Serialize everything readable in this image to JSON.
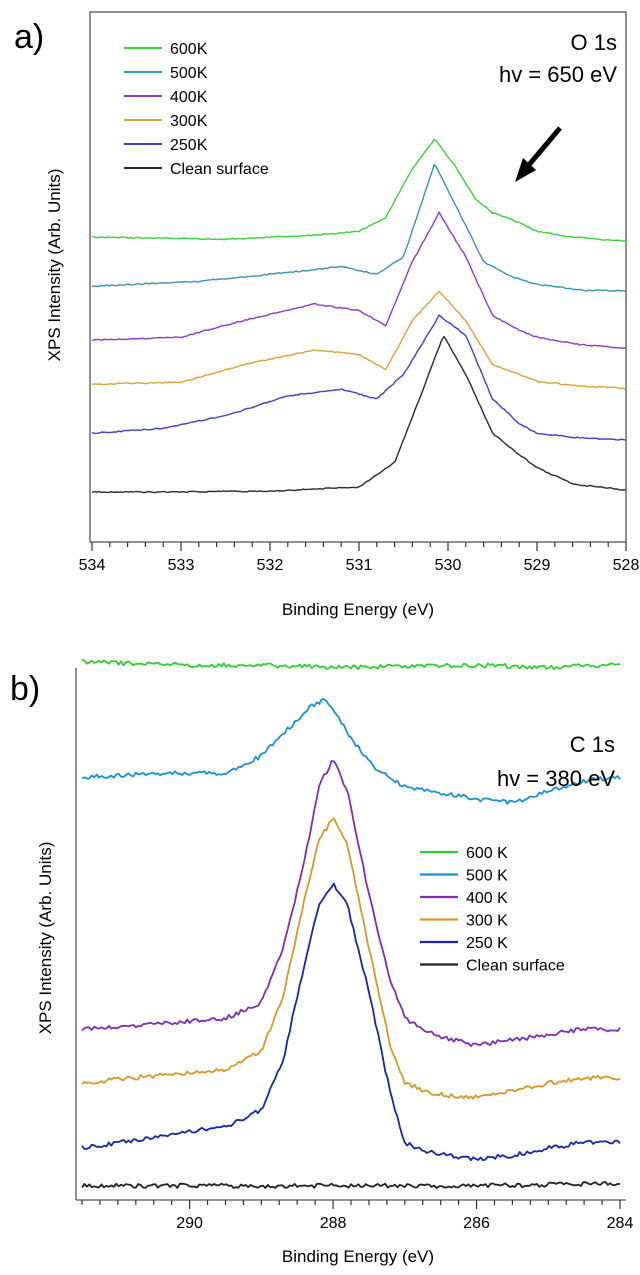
{
  "chart_data": [
    {
      "type": "line",
      "panel_label": "a)",
      "annotation_line1": "O 1s",
      "annotation_line2": "hv = 650 eV",
      "xlabel": "Binding Energy (eV)",
      "ylabel": "XPS Intensity (Arb. Units)",
      "xlim": [
        534,
        528
      ],
      "x_reversed": true,
      "xticks": [
        534,
        533,
        532,
        531,
        530,
        529,
        528
      ],
      "y_ticks_shown": false,
      "arrow": {
        "x": 529.3,
        "points_to": "600K shoulder"
      },
      "legend": {
        "placement": "top-left",
        "entries": [
          "600K",
          "500K",
          "400K",
          "300K",
          "250K",
          "Clean surface"
        ]
      },
      "series": [
        {
          "name": "600K",
          "color": "#3bd13b",
          "x": [
            534,
            532.5,
            531.5,
            531,
            530.7,
            530.4,
            530.15,
            529.9,
            529.7,
            529.5,
            529.2,
            529,
            528.6,
            528
          ],
          "y": [
            2.6,
            2.58,
            2.62,
            2.66,
            2.8,
            3.3,
            3.6,
            3.3,
            3.0,
            2.85,
            2.75,
            2.66,
            2.6,
            2.56
          ]
        },
        {
          "name": "500K",
          "color": "#3a91b4",
          "x": [
            534,
            532.8,
            531.8,
            531.2,
            530.8,
            530.5,
            530.15,
            529.9,
            529.6,
            529.3,
            529,
            528.5,
            528
          ],
          "y": [
            2.1,
            2.15,
            2.24,
            2.3,
            2.22,
            2.4,
            3.35,
            2.9,
            2.35,
            2.2,
            2.12,
            2.06,
            2.05
          ]
        },
        {
          "name": "400K",
          "color": "#8c3dbd",
          "x": [
            534,
            533,
            532.3,
            531.5,
            531,
            530.7,
            530.4,
            530.1,
            529.8,
            529.5,
            529.2,
            529,
            528.5,
            528
          ],
          "y": [
            1.55,
            1.58,
            1.75,
            1.92,
            1.85,
            1.7,
            2.35,
            2.85,
            2.4,
            1.8,
            1.65,
            1.58,
            1.5,
            1.47
          ]
        },
        {
          "name": "300K",
          "color": "#daa13a",
          "x": [
            534,
            533,
            532.3,
            531.5,
            531,
            530.7,
            530.4,
            530.1,
            529.8,
            529.5,
            529.2,
            529,
            528.5,
            528
          ],
          "y": [
            1.1,
            1.12,
            1.3,
            1.45,
            1.4,
            1.25,
            1.75,
            2.05,
            1.75,
            1.3,
            1.2,
            1.13,
            1.08,
            1.06
          ]
        },
        {
          "name": "250K",
          "color": "#3f3fc8",
          "x": [
            534,
            533.2,
            532.5,
            531.8,
            531.2,
            530.8,
            530.5,
            530.1,
            529.8,
            529.5,
            529.2,
            529,
            528.5,
            528
          ],
          "y": [
            0.6,
            0.65,
            0.78,
            0.98,
            1.05,
            0.95,
            1.2,
            1.8,
            1.6,
            0.95,
            0.7,
            0.6,
            0.55,
            0.53
          ]
        },
        {
          "name": "Clean surface",
          "color": "#2a2a2a",
          "x": [
            534,
            533,
            532,
            531,
            530.6,
            530.3,
            530.05,
            529.8,
            529.5,
            529.3,
            529,
            528.6,
            528
          ],
          "y": [
            0.0,
            0.0,
            0.01,
            0.05,
            0.3,
            1.0,
            1.6,
            1.2,
            0.6,
            0.45,
            0.25,
            0.08,
            0.02
          ]
        }
      ]
    },
    {
      "type": "line",
      "panel_label": "b)",
      "annotation_line1": "C 1s",
      "annotation_line2": "hv = 380 eV",
      "xlabel": "Binding Energy (eV)",
      "ylabel": "XPS Intensity (Arb. Units)",
      "xlim": [
        291.5,
        284
      ],
      "x_reversed": true,
      "xticks": [
        290,
        288,
        286,
        284
      ],
      "y_ticks_shown": false,
      "legend": {
        "placement": "center-right",
        "entries": [
          "600 K",
          "500 K",
          "400 K",
          "300 K",
          "250 K",
          "Clean surface"
        ]
      },
      "series": [
        {
          "name": "600 K",
          "color": "#33cc33",
          "x": [
            291.5,
            290,
            289,
            288,
            287,
            286,
            285,
            284
          ],
          "y": [
            4.75,
            4.72,
            4.72,
            4.7,
            4.71,
            4.72,
            4.7,
            4.73
          ]
        },
        {
          "name": "500 K",
          "color": "#1b8fd4",
          "x": [
            291.5,
            290.5,
            289.5,
            289,
            288.6,
            288.3,
            288.1,
            287.7,
            287.4,
            287,
            286.6,
            286,
            285.5,
            285,
            284.5,
            284
          ],
          "y": [
            3.68,
            3.72,
            3.72,
            3.88,
            4.15,
            4.35,
            4.4,
            4.0,
            3.75,
            3.6,
            3.55,
            3.48,
            3.45,
            3.55,
            3.65,
            3.68
          ]
        },
        {
          "name": "400 K",
          "color": "#7b2fb5",
          "x": [
            291.5,
            290.5,
            289.5,
            289,
            288.7,
            288.4,
            288.2,
            288,
            287.8,
            287.5,
            287.2,
            287,
            286.6,
            286,
            285.5,
            285,
            284.5,
            284
          ],
          "y": [
            1.35,
            1.4,
            1.45,
            1.6,
            2.1,
            2.9,
            3.6,
            3.85,
            3.55,
            2.6,
            1.8,
            1.45,
            1.3,
            1.2,
            1.25,
            1.3,
            1.35,
            1.35
          ]
        },
        {
          "name": "300 K",
          "color": "#d9962a",
          "x": [
            291.5,
            290.5,
            289.5,
            289,
            288.7,
            288.4,
            288.2,
            288,
            287.8,
            287.5,
            287.2,
            287,
            286.6,
            286,
            285.5,
            285,
            284.5,
            284
          ],
          "y": [
            0.85,
            0.92,
            0.98,
            1.15,
            1.65,
            2.55,
            3.1,
            3.3,
            3.05,
            2.1,
            1.2,
            0.85,
            0.75,
            0.72,
            0.78,
            0.85,
            0.9,
            0.9
          ]
        },
        {
          "name": "250 K",
          "color": "#1a25a8",
          "x": [
            291.5,
            290.5,
            289.5,
            289,
            288.7,
            288.4,
            288.2,
            288,
            287.8,
            287.5,
            287.2,
            287,
            286.6,
            286,
            285.5,
            285,
            284.5,
            284
          ],
          "y": [
            0.25,
            0.35,
            0.45,
            0.6,
            1.05,
            1.95,
            2.5,
            2.7,
            2.5,
            1.7,
            0.75,
            0.3,
            0.2,
            0.15,
            0.18,
            0.25,
            0.3,
            0.3
          ]
        },
        {
          "name": "Clean surface",
          "color": "#222222",
          "x": [
            291.5,
            290,
            288,
            286,
            284
          ],
          "y": [
            -0.1,
            -0.1,
            -0.1,
            -0.1,
            -0.08
          ]
        }
      ]
    }
  ]
}
